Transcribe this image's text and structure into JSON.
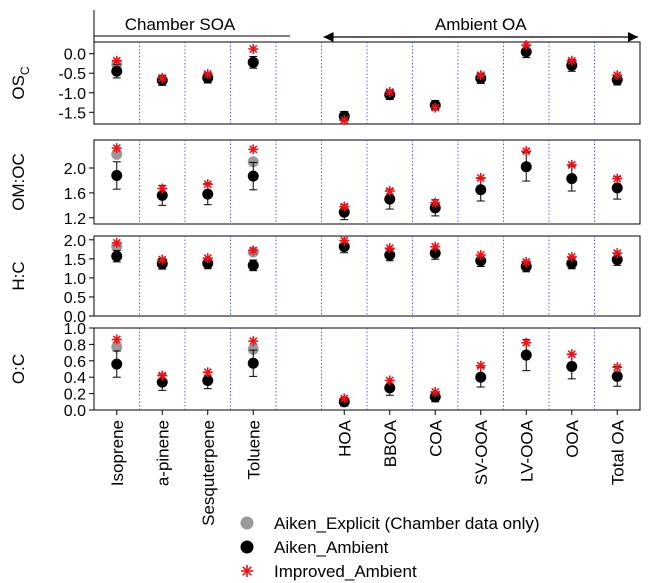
{
  "chart_data": {
    "type": "scatter",
    "categories": [
      "Isoprene",
      "a-pinene",
      "Sesquterpene",
      "Toluene",
      "",
      "HOA",
      "BBOA",
      "COA",
      "SV-OOA",
      "LV-OOA",
      "OOA",
      "Total OA"
    ],
    "groups": [
      {
        "label": "Chamber SOA",
        "from": 0,
        "to": 3
      },
      {
        "label": "Ambient OA",
        "from": 5,
        "to": 11
      }
    ],
    "legend": [
      {
        "name": "Aiken_Explicit (Chamber data only)",
        "color": "#999999",
        "marker": "circle"
      },
      {
        "name": "Aiken_Ambient",
        "color": "#000000",
        "marker": "circle"
      },
      {
        "name": "Improved_Ambient",
        "color": "#e8141b",
        "marker": "asterisk"
      }
    ],
    "panels": [
      {
        "ylabel_main": "OS",
        "ylabel_sub": "C",
        "ylim": [
          -1.8,
          0.3
        ],
        "ticks": [
          0.0,
          -0.5,
          -1.0,
          -1.5
        ],
        "tick_labels": [
          "0.0",
          "-0.5",
          "-1.0",
          "-1.5"
        ],
        "series": [
          {
            "name": "Aiken_Explicit (Chamber data only)",
            "values": [
              -0.28,
              null,
              null,
              -0.22,
              null,
              null,
              null,
              null,
              null,
              null,
              null,
              null
            ]
          },
          {
            "name": "Aiken_Ambient",
            "values": [
              -0.45,
              -0.68,
              -0.62,
              -0.22,
              null,
              -1.6,
              -1.05,
              -1.32,
              -0.63,
              0.05,
              -0.3,
              -0.67
            ],
            "err": [
              0.17,
              0.13,
              0.13,
              0.15,
              null,
              0.12,
              0.12,
              0.12,
              0.13,
              0.15,
              0.15,
              0.13
            ]
          },
          {
            "name": "Improved_Ambient",
            "values": [
              -0.18,
              -0.62,
              -0.52,
              0.12,
              null,
              -1.7,
              -0.98,
              -1.38,
              -0.55,
              0.22,
              -0.18,
              -0.55
            ]
          }
        ]
      },
      {
        "ylabel_main": "OM:OC",
        "ylim": [
          1.1,
          2.45
        ],
        "ticks": [
          1.2,
          1.6,
          2.0
        ],
        "tick_labels": [
          "1.2",
          "1.6",
          "2.0"
        ],
        "series": [
          {
            "name": "Aiken_Explicit (Chamber data only)",
            "values": [
              2.22,
              null,
              null,
              2.1,
              null,
              null,
              null,
              null,
              null,
              null,
              null,
              null
            ]
          },
          {
            "name": "Aiken_Ambient",
            "values": [
              1.88,
              1.56,
              1.58,
              1.87,
              null,
              1.29,
              1.5,
              1.36,
              1.65,
              2.02,
              1.83,
              1.68
            ],
            "err": [
              0.22,
              0.16,
              0.17,
              0.22,
              null,
              0.12,
              0.16,
              0.13,
              0.18,
              0.23,
              0.2,
              0.18
            ]
          },
          {
            "name": "Improved_Ambient",
            "values": [
              2.32,
              1.67,
              1.74,
              2.3,
              null,
              1.38,
              1.63,
              1.44,
              1.84,
              2.27,
              2.05,
              1.83
            ]
          }
        ]
      },
      {
        "ylabel_main": "H:C",
        "ylim": [
          0.0,
          2.1
        ],
        "ticks": [
          0.0,
          0.5,
          1.0,
          1.5,
          2.0
        ],
        "tick_labels": [
          "0.0",
          "0.5",
          "1.0",
          "1.5",
          "2.0"
        ],
        "series": [
          {
            "name": "Aiken_Explicit (Chamber data only)",
            "values": [
              1.82,
              null,
              null,
              1.68,
              null,
              null,
              null,
              null,
              null,
              null,
              null,
              null
            ]
          },
          {
            "name": "Aiken_Ambient",
            "values": [
              1.57,
              1.37,
              1.38,
              1.33,
              null,
              1.82,
              1.6,
              1.65,
              1.45,
              1.3,
              1.38,
              1.48
            ],
            "err": [
              0.15,
              0.14,
              0.14,
              0.14,
              null,
              0.16,
              0.15,
              0.16,
              0.15,
              0.14,
              0.14,
              0.15
            ]
          },
          {
            "name": "Improved_Ambient",
            "values": [
              1.92,
              1.48,
              1.52,
              1.72,
              null,
              1.98,
              1.78,
              1.82,
              1.6,
              1.42,
              1.55,
              1.65
            ]
          }
        ]
      },
      {
        "ylabel_main": "O:C",
        "ylim": [
          0.0,
          1.0
        ],
        "ticks": [
          0.0,
          0.2,
          0.4,
          0.6,
          0.8,
          1.0
        ],
        "tick_labels": [
          "0.0",
          "0.2",
          "0.4",
          "0.6",
          "0.8",
          "1.0"
        ],
        "series": [
          {
            "name": "Aiken_Explicit (Chamber data only)",
            "values": [
              0.77,
              null,
              null,
              0.74,
              null,
              null,
              null,
              null,
              null,
              null,
              null,
              null
            ]
          },
          {
            "name": "Aiken_Ambient",
            "values": [
              0.56,
              0.34,
              0.36,
              0.57,
              null,
              0.1,
              0.27,
              0.16,
              0.4,
              0.67,
              0.53,
              0.41
            ],
            "err": [
              0.16,
              0.1,
              0.1,
              0.16,
              null,
              0.05,
              0.09,
              0.06,
              0.12,
              0.19,
              0.15,
              0.12
            ]
          },
          {
            "name": "Improved_Ambient",
            "values": [
              0.86,
              0.42,
              0.46,
              0.84,
              null,
              0.14,
              0.36,
              0.22,
              0.54,
              0.82,
              0.68,
              0.52
            ]
          }
        ]
      }
    ]
  }
}
